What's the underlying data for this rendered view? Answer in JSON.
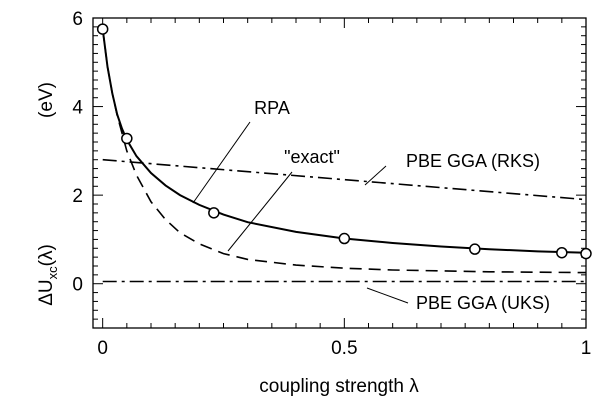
{
  "chart_data": {
    "type": "line",
    "xlabel": "coupling strength λ",
    "ylabel": "ΔUxc(λ)",
    "ylabel_base": "ΔU",
    "ylabel_sub": "xc",
    "ylabel_arg": "(λ)",
    "yunit": "(eV)",
    "xlim": [
      -0.02,
      1.0
    ],
    "ylim": [
      -1.0,
      6.0
    ],
    "xticks": [
      0,
      0.5,
      1
    ],
    "xtick_labels": [
      "0",
      "0.5",
      "1"
    ],
    "yticks": [
      0,
      2,
      4,
      6
    ],
    "ytick_labels": [
      "0",
      "2",
      "4",
      "6"
    ],
    "grid": false,
    "legend": "none (inline labels with leader lines)",
    "series": [
      {
        "name": "RPA",
        "style": "solid",
        "x": [
          0,
          0.01,
          0.02,
          0.03,
          0.04,
          0.05,
          0.07,
          0.1,
          0.13,
          0.16,
          0.2,
          0.25,
          0.3,
          0.4,
          0.5,
          0.6,
          0.7,
          0.8,
          0.9,
          1.0
        ],
        "y": [
          5.75,
          4.9,
          4.3,
          3.82,
          3.5,
          3.25,
          2.88,
          2.5,
          2.22,
          2.0,
          1.78,
          1.56,
          1.39,
          1.17,
          1.02,
          0.92,
          0.84,
          0.78,
          0.73,
          0.7
        ]
      },
      {
        "name": "\"exact\"",
        "style": "dashed",
        "x": [
          0,
          0.01,
          0.02,
          0.03,
          0.04,
          0.05,
          0.07,
          0.1,
          0.13,
          0.16,
          0.2,
          0.25,
          0.3,
          0.4,
          0.5,
          0.6,
          0.7,
          0.8,
          0.9,
          1.0
        ],
        "y": [
          5.75,
          4.9,
          4.3,
          3.8,
          3.4,
          3.0,
          2.45,
          1.85,
          1.45,
          1.15,
          0.9,
          0.68,
          0.55,
          0.42,
          0.35,
          0.31,
          0.29,
          0.27,
          0.26,
          0.25
        ]
      },
      {
        "name": "PBE GGA (RKS)",
        "style": "dashdot",
        "x": [
          0,
          1.0
        ],
        "y": [
          2.8,
          1.9
        ]
      },
      {
        "name": "PBE GGA (UKS)",
        "style": "dashdot",
        "x": [
          0,
          1.0
        ],
        "y": [
          0.05,
          0.05
        ]
      }
    ],
    "markers": {
      "shape": "open-circle",
      "x": [
        0,
        0.05,
        0.23,
        0.5,
        0.77,
        0.95,
        1.0
      ],
      "y": [
        5.75,
        3.28,
        1.6,
        1.02,
        0.78,
        0.7,
        0.68
      ]
    },
    "annotations": [
      {
        "text": "RPA",
        "target_series": "RPA"
      },
      {
        "text": "\"exact\"",
        "target_series": "\"exact\""
      },
      {
        "text": "PBE GGA (RKS)",
        "target_series": "PBE GGA (RKS)"
      },
      {
        "text": "PBE GGA (UKS)",
        "target_series": "PBE GGA (UKS)"
      }
    ]
  }
}
